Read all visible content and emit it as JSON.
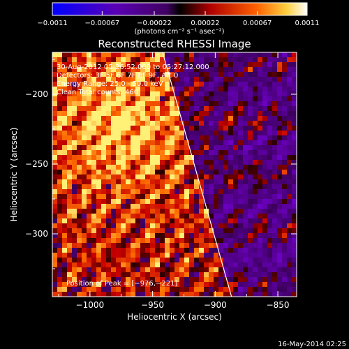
{
  "chart_data": {
    "type": "heatmap",
    "title": "Reconstructed RHESSI Image",
    "xlabel": "Heliocentric X (arcsec)",
    "ylabel": "Heliocentric Y (arcsec)",
    "xlim": [
      -1030,
      -835
    ],
    "ylim": [
      -345,
      -170
    ],
    "x_ticks": [
      -1000,
      -950,
      -900,
      -850
    ],
    "x_tick_labels": [
      "−1000",
      "−950",
      "−900",
      "−850"
    ],
    "y_ticks": [
      -200,
      -250,
      -300
    ],
    "y_tick_labels": [
      "−200",
      "−250",
      "−300"
    ],
    "colorbar": {
      "range": [
        -0.0011,
        0.0011
      ],
      "ticks": [
        -0.0011,
        -0.00067,
        -0.00022,
        0.00022,
        0.00067,
        0.0011
      ],
      "tick_labels": [
        "−0.0011",
        "−0.00067",
        "−0.00022",
        "0.00022",
        "0.00067",
        "0.0011"
      ],
      "units": "(photons cm⁻² s⁻¹ asec⁻²)"
    },
    "annotations": [
      "30-Aug-2012 05:26:52.000 to 05:27:12.000",
      "Detectors: 3F 5F 6F 7F 8F 9F, Att 0",
      "Energy Range: 25.0 - 50.0 keV",
      "Clean    Total counts: 460."
    ],
    "peak_label": "Position of Peak = [−976,−221]",
    "peak": [
      -976,
      -221
    ],
    "limb_line": [
      [
        -942,
        -170
      ],
      [
        -887,
        -345
      ]
    ],
    "footer": "16-May-2014 02:25"
  }
}
